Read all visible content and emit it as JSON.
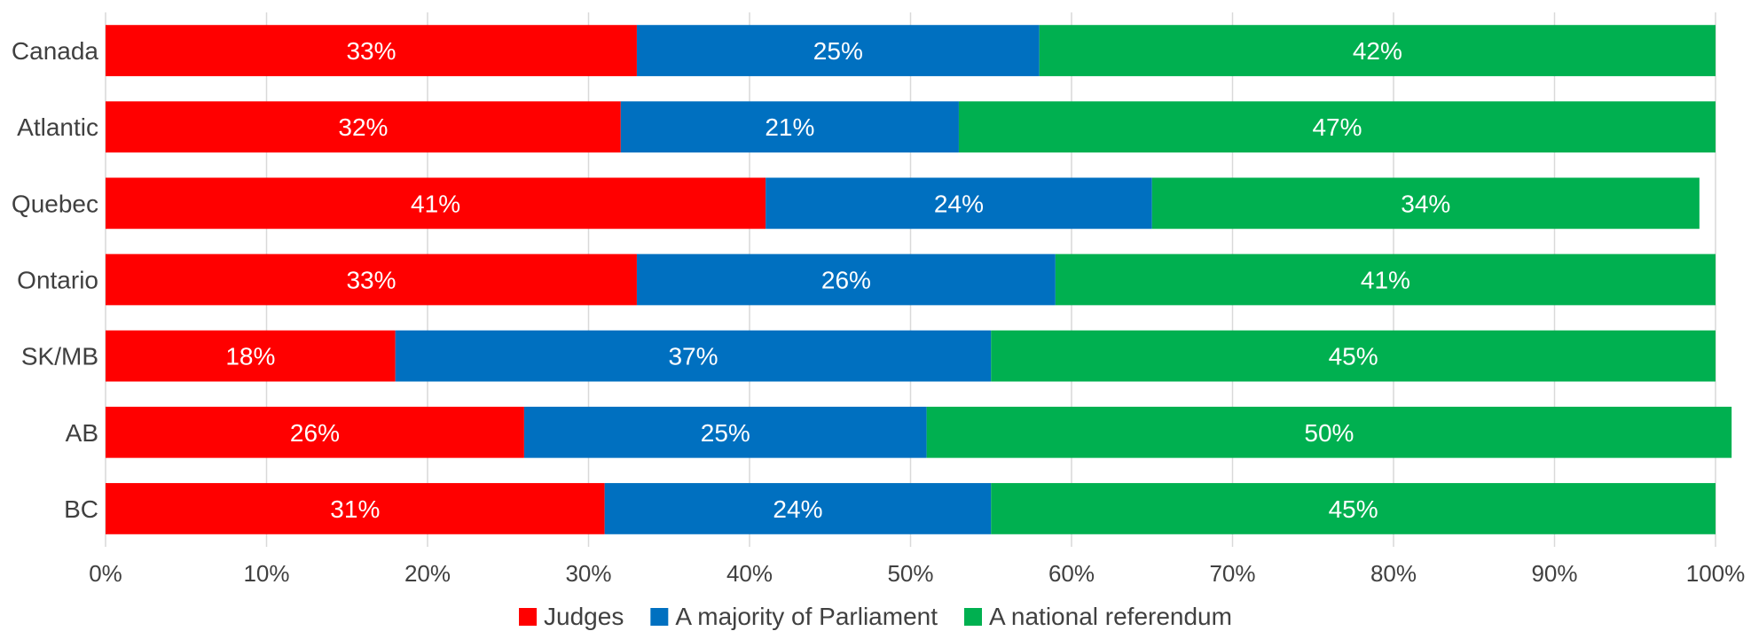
{
  "chart_data": {
    "type": "bar",
    "orientation": "horizontal",
    "stacked": true,
    "title": "",
    "xlabel": "",
    "ylabel": "",
    "xlim": [
      0,
      100
    ],
    "x_ticks": [
      "0%",
      "10%",
      "20%",
      "30%",
      "40%",
      "50%",
      "60%",
      "70%",
      "80%",
      "90%",
      "100%"
    ],
    "grid": true,
    "legend_position": "bottom",
    "categories": [
      "Canada",
      "Atlantic",
      "Quebec",
      "Ontario",
      "SK/MB",
      "AB",
      "BC"
    ],
    "series": [
      {
        "name": "Judges",
        "color": "#ff0000",
        "values": [
          33,
          32,
          41,
          33,
          18,
          26,
          31
        ],
        "labels": [
          "33%",
          "32%",
          "41%",
          "33%",
          "18%",
          "26%",
          "31%"
        ]
      },
      {
        "name": "A majority of Parliament",
        "color": "#0070c0",
        "values": [
          25,
          21,
          24,
          26,
          37,
          25,
          24
        ],
        "labels": [
          "25%",
          "21%",
          "24%",
          "26%",
          "37%",
          "25%",
          "24%"
        ]
      },
      {
        "name": "A national referendum",
        "color": "#00b050",
        "values": [
          42,
          47,
          34,
          41,
          45,
          50,
          45
        ],
        "labels": [
          "42%",
          "47%",
          "34%",
          "41%",
          "45%",
          "50%",
          "45%"
        ]
      }
    ]
  }
}
